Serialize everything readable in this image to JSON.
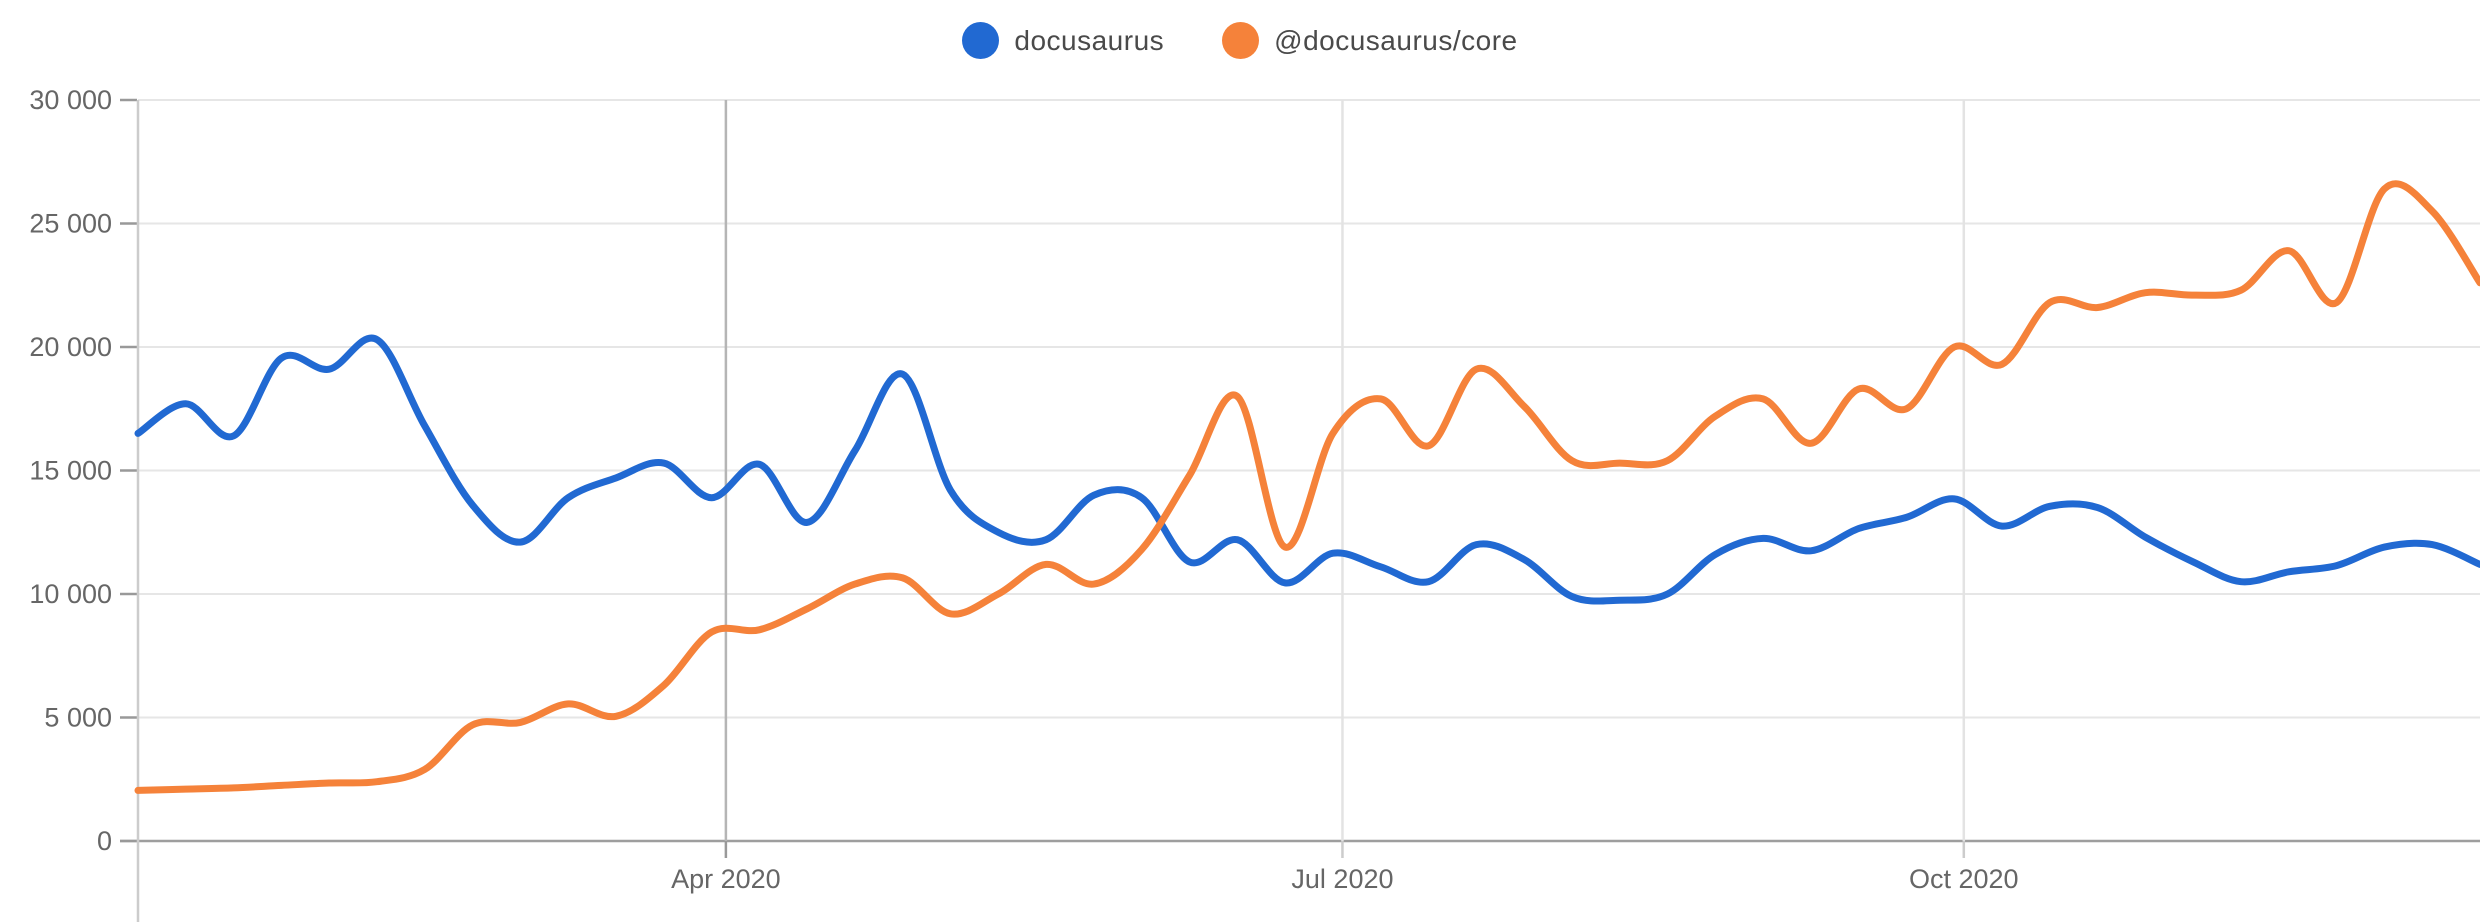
{
  "legend": {
    "items": [
      {
        "label": "docusaurus",
        "color": "#2169d2"
      },
      {
        "label": "@docusaurus/core",
        "color": "#f5823a"
      }
    ]
  },
  "colors": {
    "background": "#ffffff",
    "grid": "#e6e6e6",
    "axis_bottom": "#9e9e9e",
    "axis_left": "#cccccc",
    "month_line_strong": "#b5b5b5",
    "month_line_light": "#e3e3e3",
    "y_tick_dash": "#999999",
    "x_tick_dash_strong": "#999999",
    "x_tick_dash_light": "#cccccc",
    "tick_label": "#666666",
    "legend_text": "#4a4a4a",
    "series_blue": "#2169d2",
    "series_orange": "#f5823a"
  },
  "chart_data": {
    "type": "line",
    "x_unit": "week index (weekly npm downloads, Jan 2020 – mid Dec 2020)",
    "ylim": [
      0,
      30000
    ],
    "grid": {
      "horizontal": true,
      "vertical_months": true
    },
    "legend_position": "top-center",
    "y_ticks": {
      "values": [
        0,
        5000,
        10000,
        15000,
        20000,
        25000,
        30000
      ],
      "labels": [
        "0",
        "5 000",
        "10 000",
        "15 000",
        "20 000",
        "25 000",
        "30 000"
      ]
    },
    "x_ticks": [
      {
        "label": "Apr 2020",
        "week": 12.3,
        "strong": true
      },
      {
        "label": "Jul 2020",
        "week": 25.2,
        "strong": false
      },
      {
        "label": "Oct 2020",
        "week": 38.2,
        "strong": false
      }
    ],
    "weeks": 50,
    "series": [
      {
        "name": "docusaurus",
        "color": "#2169d2",
        "values": [
          16500,
          17700,
          16400,
          19550,
          19100,
          20300,
          16800,
          13600,
          12100,
          13900,
          14700,
          15300,
          13900,
          15250,
          12900,
          15800,
          18900,
          14200,
          12500,
          12200,
          14000,
          13900,
          11300,
          12200,
          10450,
          11650,
          11100,
          10500,
          12000,
          11400,
          9900,
          9750,
          10000,
          11600,
          12250,
          11750,
          12650,
          13100,
          13850,
          12750,
          13550,
          13500,
          12300,
          11300,
          10500,
          10900,
          11150,
          11900,
          12000,
          11200
        ]
      },
      {
        "name": "@docusaurus/core",
        "color": "#f5823a",
        "values": [
          2050,
          2100,
          2150,
          2250,
          2350,
          2400,
          2900,
          4700,
          4800,
          5550,
          5050,
          6300,
          8460,
          8550,
          9400,
          10400,
          10650,
          9200,
          10000,
          11200,
          10400,
          11800,
          14800,
          18000,
          11900,
          16500,
          17900,
          16000,
          19100,
          17600,
          15400,
          15300,
          15400,
          17200,
          17900,
          16100,
          18300,
          17500,
          20000,
          19300,
          21800,
          21600,
          22200,
          22100,
          22300,
          23900,
          21800,
          26400,
          25500,
          22600
        ]
      }
    ]
  }
}
